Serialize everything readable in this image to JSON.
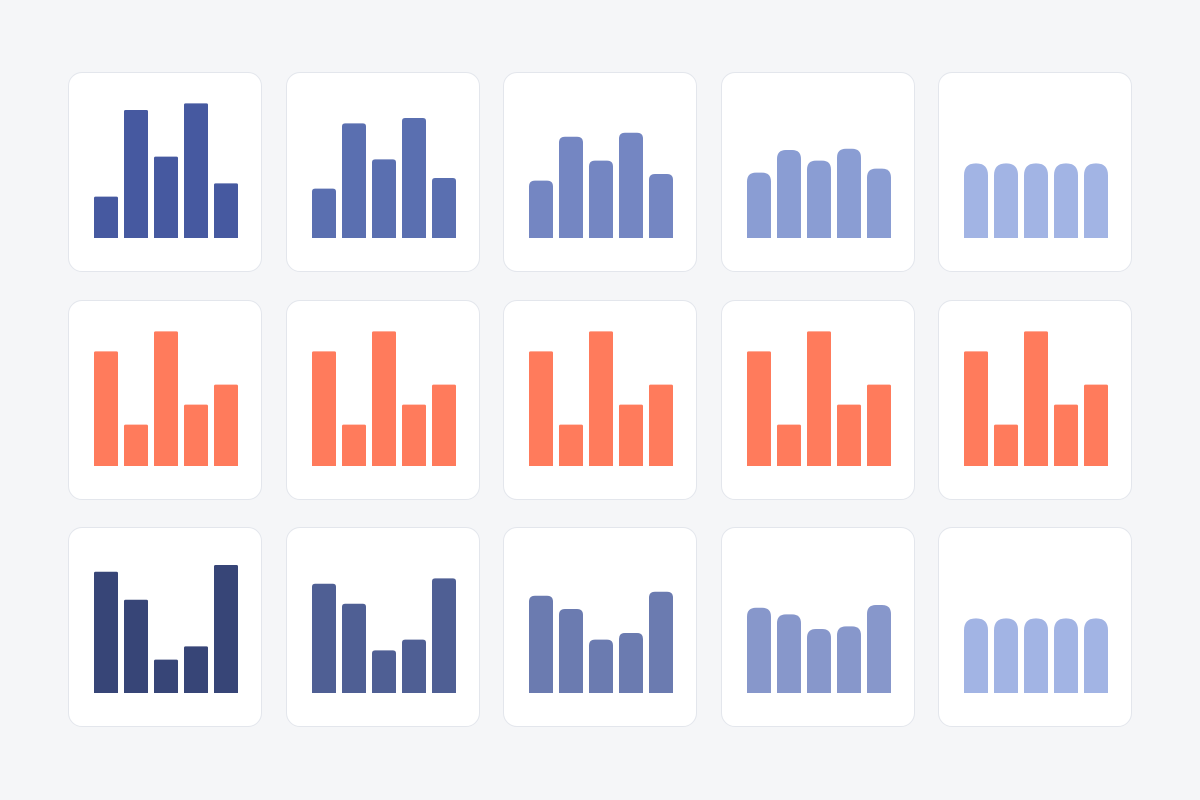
{
  "colors": {
    "background": "#f5f6f8",
    "card": "#ffffff",
    "card_border": "#e3e6ec"
  },
  "chart_data": [
    {
      "type": "bar",
      "row": 1,
      "col": 1,
      "color": "#4659a0",
      "values": [
        31,
        96,
        61,
        101,
        41
      ],
      "ylim": [
        0,
        100
      ],
      "bar_shape": "square"
    },
    {
      "type": "bar",
      "row": 1,
      "col": 2,
      "color": "#5a6fb0",
      "values": [
        37,
        86,
        59,
        90,
        45
      ],
      "ylim": [
        0,
        100
      ],
      "bar_shape": "slightly-rounded"
    },
    {
      "type": "bar",
      "row": 1,
      "col": 3,
      "color": "#7486c2",
      "values": [
        43,
        76,
        58,
        79,
        48
      ],
      "ylim": [
        0,
        100
      ],
      "bar_shape": "rounded"
    },
    {
      "type": "bar",
      "row": 1,
      "col": 4,
      "color": "#8a9dd3",
      "values": [
        49,
        66,
        58,
        67,
        52
      ],
      "ylim": [
        0,
        100
      ],
      "bar_shape": "more-rounded"
    },
    {
      "type": "bar",
      "row": 1,
      "col": 5,
      "color": "#a2b4e4",
      "values": [
        56,
        56,
        56,
        56,
        56
      ],
      "ylim": [
        0,
        100
      ],
      "bar_shape": "pill"
    },
    {
      "type": "bar",
      "row": 2,
      "col": 1,
      "color": "#ff7b5c",
      "values": [
        86,
        31,
        101,
        46,
        61
      ],
      "ylim": [
        0,
        100
      ],
      "bar_shape": "square"
    },
    {
      "type": "bar",
      "row": 2,
      "col": 2,
      "color": "#ff7b5c",
      "values": [
        86,
        31,
        101,
        46,
        61
      ],
      "ylim": [
        0,
        100
      ],
      "bar_shape": "square"
    },
    {
      "type": "bar",
      "row": 2,
      "col": 3,
      "color": "#ff7b5c",
      "values": [
        86,
        31,
        101,
        46,
        61
      ],
      "ylim": [
        0,
        100
      ],
      "bar_shape": "square"
    },
    {
      "type": "bar",
      "row": 2,
      "col": 4,
      "color": "#ff7b5c",
      "values": [
        86,
        31,
        101,
        46,
        61
      ],
      "ylim": [
        0,
        100
      ],
      "bar_shape": "square"
    },
    {
      "type": "bar",
      "row": 2,
      "col": 5,
      "color": "#ff7b5c",
      "values": [
        86,
        31,
        101,
        46,
        61
      ],
      "ylim": [
        0,
        100
      ],
      "bar_shape": "square"
    },
    {
      "type": "bar",
      "row": 3,
      "col": 1,
      "color": "#374577",
      "values": [
        91,
        70,
        25,
        35,
        96
      ],
      "ylim": [
        0,
        100
      ],
      "bar_shape": "square"
    },
    {
      "type": "bar",
      "row": 3,
      "col": 2,
      "color": "#4f5f94",
      "values": [
        82,
        67,
        32,
        40,
        86
      ],
      "ylim": [
        0,
        100
      ],
      "bar_shape": "slightly-rounded"
    },
    {
      "type": "bar",
      "row": 3,
      "col": 3,
      "color": "#6b7bb0",
      "values": [
        73,
        63,
        40,
        45,
        76
      ],
      "ylim": [
        0,
        100
      ],
      "bar_shape": "rounded"
    },
    {
      "type": "bar",
      "row": 3,
      "col": 4,
      "color": "#8797cb",
      "values": [
        64,
        59,
        48,
        50,
        66
      ],
      "ylim": [
        0,
        100
      ],
      "bar_shape": "more-rounded"
    },
    {
      "type": "bar",
      "row": 3,
      "col": 5,
      "color": "#a2b4e4",
      "values": [
        56,
        56,
        56,
        56,
        56
      ],
      "ylim": [
        0,
        100
      ],
      "bar_shape": "pill"
    }
  ]
}
